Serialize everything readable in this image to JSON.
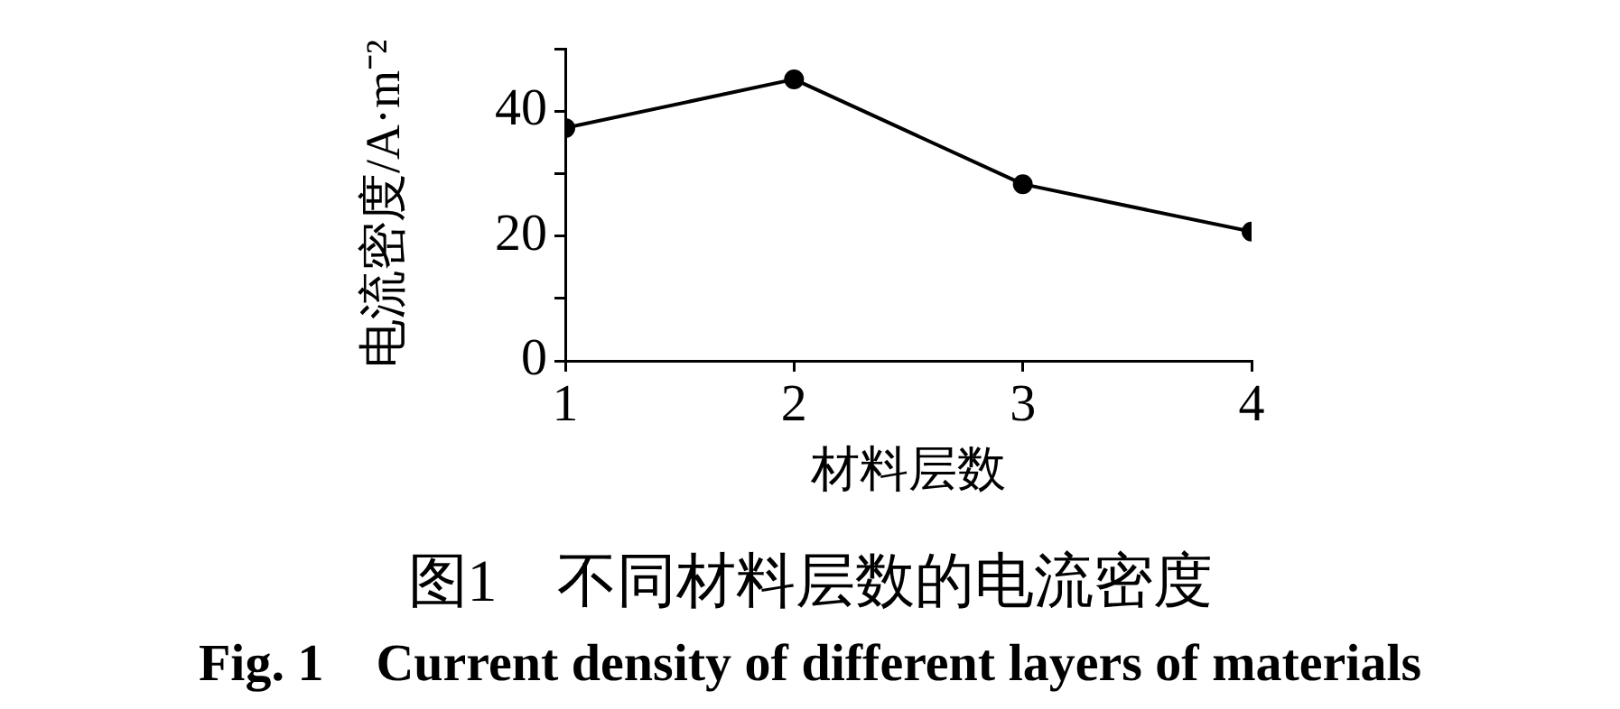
{
  "chart_data": {
    "type": "line",
    "title": "图1　不同材料层数的电流密度",
    "subtitle": "Fig. 1　Current density of different layers of materials",
    "xlabel": "材料层数",
    "ylabel": "电流密度/A·m⁻²",
    "x": [
      1,
      2,
      3,
      4
    ],
    "series": [
      {
        "color": "#000000",
        "values": [
          37.3,
          45.1,
          28.3,
          20.7
        ]
      }
    ],
    "xlim": [
      1,
      4
    ],
    "xticks": [
      1,
      2,
      3,
      4
    ],
    "ylim": [
      0,
      50
    ],
    "yticks": [
      0,
      {
        "value": 10,
        "label": null
      },
      20,
      {
        "value": 30,
        "label": null
      },
      40,
      {
        "value": 50,
        "label": null
      }
    ],
    "grid": false,
    "legend": false,
    "marker": "circle",
    "line_style": "solid"
  }
}
